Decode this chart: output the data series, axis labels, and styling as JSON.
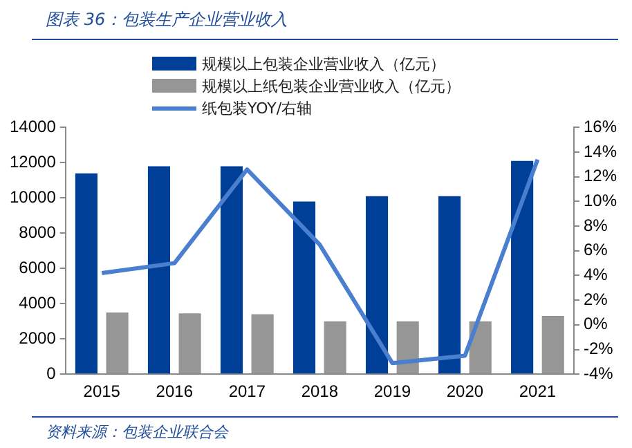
{
  "chart_data": {
    "type": "bar",
    "title": "图表 36：包装生产企业营业收入",
    "annotations": [
      "资料来源：包装企业联合会"
    ],
    "categories": [
      "2015",
      "2016",
      "2017",
      "2018",
      "2019",
      "2020",
      "2021"
    ],
    "series": [
      {
        "name": "规模以上包装企业营业收入（亿元）",
        "color": "#003f98",
        "values": [
          11400,
          11800,
          11800,
          9800,
          10100,
          10100,
          12100
        ]
      },
      {
        "name": "规模以上纸包装企业营业收入（亿元）",
        "color": "#969696",
        "values": [
          3500,
          3450,
          3400,
          3000,
          3000,
          3000,
          3300
        ]
      },
      {
        "name": "纸包装YOY/右轴",
        "type": "line",
        "axis": "y2",
        "color": "#4a7fcf",
        "values": [
          4.2,
          5.0,
          12.6,
          6.5,
          -3.1,
          -2.5,
          13.4
        ]
      }
    ],
    "ylim": [
      0,
      14000
    ],
    "yticks": [
      0,
      2000,
      4000,
      6000,
      8000,
      10000,
      12000,
      14000
    ],
    "y2lim": [
      -4,
      16
    ],
    "y2ticks": [
      {
        "value": -4,
        "label": "-4%"
      },
      {
        "value": -2,
        "label": "-2%"
      },
      {
        "value": 0,
        "label": "0%"
      },
      {
        "value": 2,
        "label": "2%"
      },
      {
        "value": 4,
        "label": "4%"
      },
      {
        "value": 6,
        "label": "6%"
      },
      {
        "value": 8,
        "label": "8%"
      },
      {
        "value": 10,
        "label": "10%"
      },
      {
        "value": 12,
        "label": "12%"
      },
      {
        "value": 14,
        "label": "14%"
      },
      {
        "value": 16,
        "label": "16%"
      }
    ],
    "grid": false,
    "legend": "top",
    "marker": "none",
    "line_style": "solid"
  }
}
